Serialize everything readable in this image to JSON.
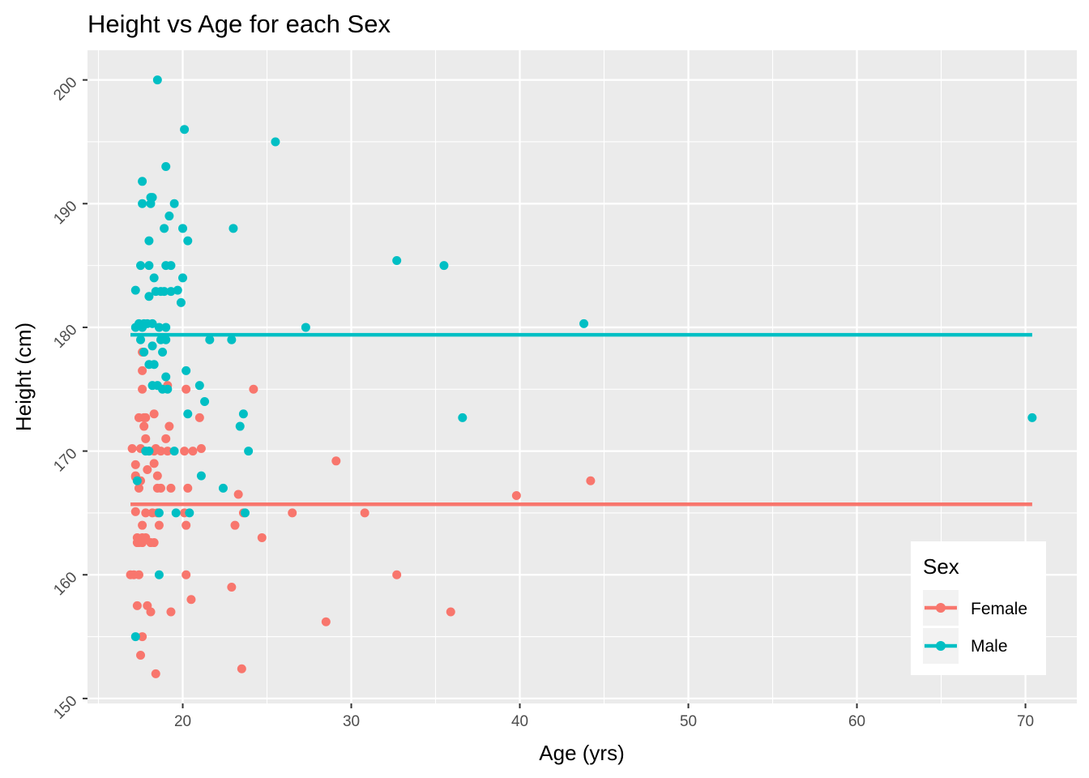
{
  "chart_data": {
    "type": "scatter",
    "title": "Height vs Age for each Sex",
    "xlabel": "Age (yrs)",
    "ylabel": "Height (cm)",
    "xlim": [
      14.35,
      73.05
    ],
    "ylim": [
      149.6,
      202.4
    ],
    "x_ticks": [
      20,
      30,
      40,
      50,
      60,
      70
    ],
    "y_ticks": [
      150,
      160,
      170,
      180,
      190,
      200
    ],
    "grid": true,
    "legend": {
      "title": "Sex",
      "position": "bottom-right"
    },
    "series": [
      {
        "name": "Female",
        "color": "#F8766D",
        "mean_line": 165.7,
        "line_x_range": [
          16.9,
          70.4
        ],
        "points": [
          [
            16.9,
            160
          ],
          [
            17.1,
            160
          ],
          [
            17.0,
            170.2
          ],
          [
            17.2,
            168
          ],
          [
            17.2,
            167.9
          ],
          [
            17.2,
            168.9
          ],
          [
            17.2,
            165.1
          ],
          [
            17.3,
            157.5
          ],
          [
            17.3,
            162.6
          ],
          [
            17.4,
            162.6
          ],
          [
            17.3,
            163
          ],
          [
            17.4,
            160
          ],
          [
            17.4,
            167
          ],
          [
            17.4,
            172.7
          ],
          [
            17.5,
            167.6
          ],
          [
            17.5,
            170.2
          ],
          [
            17.6,
            162.6
          ],
          [
            17.6,
            163
          ],
          [
            17.6,
            164
          ],
          [
            17.6,
            155
          ],
          [
            17.5,
            153.5
          ],
          [
            17.6,
            175
          ],
          [
            17.6,
            176.5
          ],
          [
            17.6,
            178
          ],
          [
            17.7,
            172.7
          ],
          [
            17.7,
            172
          ],
          [
            17.8,
            172.7
          ],
          [
            17.8,
            171
          ],
          [
            17.8,
            165
          ],
          [
            17.8,
            163
          ],
          [
            17.9,
            168.5
          ],
          [
            17.9,
            157.5
          ],
          [
            18.0,
            170
          ],
          [
            18.1,
            162.6
          ],
          [
            18.1,
            157
          ],
          [
            18.2,
            165
          ],
          [
            18.3,
            169
          ],
          [
            18.3,
            162.6
          ],
          [
            18.3,
            170
          ],
          [
            18.3,
            173
          ],
          [
            18.4,
            170.2
          ],
          [
            18.4,
            152
          ],
          [
            18.5,
            168
          ],
          [
            18.5,
            167
          ],
          [
            18.5,
            165
          ],
          [
            18.6,
            164
          ],
          [
            18.7,
            167
          ],
          [
            18.7,
            170
          ],
          [
            19.0,
            171
          ],
          [
            19.1,
            175.3
          ],
          [
            19.1,
            170
          ],
          [
            19.2,
            172
          ],
          [
            19.3,
            167
          ],
          [
            19.3,
            157
          ],
          [
            20.1,
            165
          ],
          [
            20.1,
            170
          ],
          [
            20.2,
            175
          ],
          [
            20.2,
            164
          ],
          [
            20.2,
            160
          ],
          [
            20.3,
            167
          ],
          [
            20.5,
            158
          ],
          [
            20.6,
            170
          ],
          [
            21.0,
            172.7
          ],
          [
            21.1,
            170.2
          ],
          [
            22.9,
            159
          ],
          [
            23.1,
            164
          ],
          [
            23.3,
            166.5
          ],
          [
            23.5,
            152.4
          ],
          [
            23.6,
            165
          ],
          [
            24.2,
            175
          ],
          [
            24.7,
            163
          ],
          [
            26.5,
            165
          ],
          [
            28.5,
            156.2
          ],
          [
            29.1,
            169.2
          ],
          [
            30.8,
            165
          ],
          [
            32.7,
            160
          ],
          [
            35.9,
            157
          ],
          [
            39.8,
            166.4
          ],
          [
            44.2,
            167.6
          ]
        ]
      },
      {
        "name": "Male",
        "color": "#00BFC4",
        "mean_line": 179.4,
        "line_x_range": [
          16.9,
          70.4
        ],
        "points": [
          [
            17.2,
            183
          ],
          [
            17.2,
            180
          ],
          [
            17.2,
            155
          ],
          [
            17.3,
            167.6
          ],
          [
            17.4,
            180.3
          ],
          [
            17.5,
            185
          ],
          [
            17.5,
            179
          ],
          [
            17.6,
            191.8
          ],
          [
            17.6,
            190
          ],
          [
            17.6,
            180
          ],
          [
            17.7,
            180.3
          ],
          [
            17.7,
            178
          ],
          [
            17.8,
            170
          ],
          [
            17.9,
            180.3
          ],
          [
            18.0,
            187
          ],
          [
            18.0,
            185
          ],
          [
            18.0,
            182.5
          ],
          [
            18.0,
            177
          ],
          [
            18.0,
            170
          ],
          [
            18.1,
            190.5
          ],
          [
            18.1,
            190
          ],
          [
            18.2,
            190.5
          ],
          [
            18.2,
            180.3
          ],
          [
            18.2,
            178.5
          ],
          [
            18.2,
            175.3
          ],
          [
            18.3,
            177
          ],
          [
            18.3,
            184
          ],
          [
            18.4,
            182.9
          ],
          [
            18.5,
            175.3
          ],
          [
            18.5,
            200
          ],
          [
            18.6,
            165
          ],
          [
            18.6,
            160
          ],
          [
            18.6,
            180
          ],
          [
            18.7,
            182.9
          ],
          [
            18.7,
            179
          ],
          [
            18.8,
            178
          ],
          [
            18.8,
            175
          ],
          [
            18.9,
            182.9
          ],
          [
            18.9,
            188
          ],
          [
            19.0,
            193
          ],
          [
            19.0,
            185
          ],
          [
            19.0,
            180
          ],
          [
            19.0,
            179
          ],
          [
            19.0,
            176
          ],
          [
            19.1,
            175
          ],
          [
            19.2,
            189
          ],
          [
            19.3,
            185
          ],
          [
            19.3,
            182.9
          ],
          [
            19.5,
            190
          ],
          [
            19.5,
            170
          ],
          [
            19.6,
            165
          ],
          [
            19.7,
            183
          ],
          [
            19.9,
            182
          ],
          [
            20.0,
            188
          ],
          [
            20.0,
            184
          ],
          [
            20.1,
            196
          ],
          [
            20.2,
            176.5
          ],
          [
            20.3,
            173
          ],
          [
            20.3,
            187
          ],
          [
            20.4,
            165
          ],
          [
            21.0,
            175.3
          ],
          [
            21.1,
            168
          ],
          [
            21.3,
            174
          ],
          [
            21.6,
            179
          ],
          [
            22.4,
            167
          ],
          [
            22.9,
            179
          ],
          [
            23.0,
            188
          ],
          [
            23.4,
            172
          ],
          [
            23.6,
            173
          ],
          [
            23.7,
            165
          ],
          [
            23.9,
            170
          ],
          [
            25.5,
            195
          ],
          [
            27.3,
            180
          ],
          [
            32.7,
            185.4
          ],
          [
            35.5,
            185
          ],
          [
            36.6,
            172.7
          ],
          [
            43.8,
            180.3
          ],
          [
            70.4,
            172.7
          ]
        ]
      }
    ]
  }
}
